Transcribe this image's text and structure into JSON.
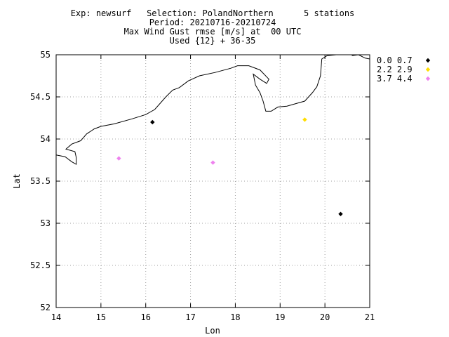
{
  "chart_data": {
    "type": "scatter",
    "title_lines": [
      "Exp: newsurf   Selection: PolandNorthern      5 stations",
      "Period: 20210716-20210724",
      "Max Wind Gust rmse [m/s] at  00 UTC",
      "Used {12} + 36-35"
    ],
    "xlabel": "Lon",
    "ylabel": "Lat",
    "xlim": [
      14,
      21
    ],
    "ylim": [
      52,
      55
    ],
    "x_ticks": [
      "14",
      "15",
      "16",
      "17",
      "18",
      "19",
      "20",
      "21"
    ],
    "y_ticks": [
      "52",
      "52.5",
      "53",
      "53.5",
      "54",
      "54.5",
      "55"
    ],
    "grid": true,
    "legend_position": "right",
    "legend": [
      {
        "label": "0.0 0.7",
        "color": "#000000"
      },
      {
        "label": "2.2 2.9",
        "color": "#ffdd00"
      },
      {
        "label": "3.7 4.4",
        "color": "#ee82ee"
      }
    ],
    "points": [
      {
        "lon": 16.15,
        "lat": 54.2,
        "class": 0
      },
      {
        "lon": 20.35,
        "lat": 53.11,
        "class": 0
      },
      {
        "lon": 19.55,
        "lat": 54.23,
        "class": 1
      },
      {
        "lon": 15.4,
        "lat": 53.77,
        "class": 2
      },
      {
        "lon": 17.5,
        "lat": 53.72,
        "class": 2
      }
    ],
    "coastline": [
      [
        [
          14.0,
          53.81
        ],
        [
          14.2,
          53.79
        ],
        [
          14.35,
          53.73
        ],
        [
          14.45,
          53.7
        ],
        [
          14.45,
          53.78
        ],
        [
          14.42,
          53.85
        ],
        [
          14.22,
          53.88
        ],
        [
          14.35,
          53.94
        ],
        [
          14.55,
          53.98
        ],
        [
          14.68,
          54.06
        ],
        [
          14.85,
          54.12
        ],
        [
          15.0,
          54.15
        ],
        [
          15.3,
          54.18
        ],
        [
          15.7,
          54.24
        ],
        [
          16.0,
          54.29
        ],
        [
          16.2,
          54.35
        ],
        [
          16.45,
          54.5
        ],
        [
          16.6,
          54.58
        ],
        [
          16.75,
          54.61
        ],
        [
          16.95,
          54.69
        ],
        [
          17.2,
          54.75
        ],
        [
          17.55,
          54.79
        ],
        [
          17.9,
          54.84
        ],
        [
          18.05,
          54.87
        ],
        [
          18.3,
          54.87
        ],
        [
          18.55,
          54.82
        ],
        [
          18.75,
          54.71
        ],
        [
          18.7,
          54.66
        ],
        [
          18.55,
          54.71
        ],
        [
          18.4,
          54.77
        ],
        [
          18.45,
          54.64
        ],
        [
          18.55,
          54.55
        ],
        [
          18.62,
          54.45
        ],
        [
          18.68,
          54.33
        ],
        [
          18.8,
          54.33
        ],
        [
          18.95,
          54.38
        ],
        [
          19.15,
          54.39
        ],
        [
          19.35,
          54.42
        ],
        [
          19.55,
          54.45
        ],
        [
          19.72,
          54.55
        ],
        [
          19.82,
          54.62
        ],
        [
          19.9,
          54.75
        ],
        [
          19.93,
          54.95
        ],
        [
          20.05,
          54.99
        ],
        [
          20.25,
          55.0
        ]
      ],
      [
        [
          20.6,
          54.99
        ],
        [
          20.75,
          55.0
        ],
        [
          20.9,
          54.96
        ],
        [
          21.0,
          54.95
        ]
      ]
    ]
  }
}
